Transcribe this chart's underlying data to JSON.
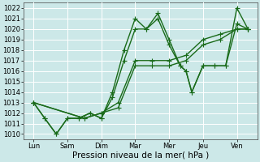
{
  "title": "",
  "xlabel": "Pression niveau de la mer( hPa )",
  "ylabel": "",
  "background_color": "#cce8e8",
  "grid_color": "#ffffff",
  "line_color": "#1a6b1a",
  "ylim": [
    1009.5,
    1022.5
  ],
  "yticks": [
    1010,
    1011,
    1012,
    1013,
    1014,
    1015,
    1016,
    1017,
    1018,
    1019,
    1020,
    1021,
    1022
  ],
  "x_labels": [
    "Lun",
    "Sam",
    "Dim",
    "Mar",
    "Mer",
    "Jeu",
    "Ven"
  ],
  "x_positions": [
    0,
    1,
    2,
    3,
    4,
    5,
    6
  ],
  "lines": [
    {
      "x": [
        0,
        0.33,
        0.67,
        1.0,
        1.33,
        1.67,
        2.0,
        2.33,
        2.67,
        3.0,
        3.33,
        3.67,
        4.0,
        4.33,
        4.5,
        4.67,
        5.0,
        5.33,
        5.67,
        6.0,
        6.33
      ],
      "y": [
        1013,
        1011.5,
        1010,
        1011.5,
        1011.5,
        1012,
        1011.5,
        1014,
        1018,
        1021,
        1020,
        1021.5,
        1019,
        1016.5,
        1016,
        1014,
        1016.5,
        1016.5,
        1016.5,
        1022,
        1020
      ]
    },
    {
      "x": [
        0,
        0.33,
        0.67,
        1.0,
        1.33,
        1.67,
        2.0,
        2.33,
        2.67,
        3.0,
        3.33,
        3.67,
        4.0,
        4.33,
        4.5,
        4.67,
        5.0,
        5.33,
        5.67,
        6.0,
        6.33
      ],
      "y": [
        1013,
        1011.5,
        1010,
        1011.5,
        1011.5,
        1012,
        1011.5,
        1013.5,
        1017,
        1020,
        1020,
        1021,
        1018.5,
        1016.5,
        1016,
        1014,
        1016.5,
        1016.5,
        1016.5,
        1020.5,
        1020
      ]
    },
    {
      "x": [
        0,
        1.5,
        2.0,
        2.5,
        3.0,
        3.5,
        4.0,
        4.5,
        5.0,
        5.5,
        6.0,
        6.33
      ],
      "y": [
        1013,
        1011.5,
        1012,
        1012.5,
        1016.5,
        1016.5,
        1016.5,
        1017,
        1018.5,
        1019,
        1020,
        1020
      ]
    },
    {
      "x": [
        0,
        1.5,
        2.0,
        2.5,
        3.0,
        3.5,
        4.0,
        4.5,
        5.0,
        5.5,
        6.0,
        6.33
      ],
      "y": [
        1013,
        1011.5,
        1012,
        1013,
        1017,
        1017,
        1017,
        1017.5,
        1019,
        1019.5,
        1020,
        1020
      ]
    }
  ],
  "marker": "+",
  "markersize": 4,
  "linewidth": 1.0,
  "tick_fontsize": 6,
  "xlabel_fontsize": 7.5
}
